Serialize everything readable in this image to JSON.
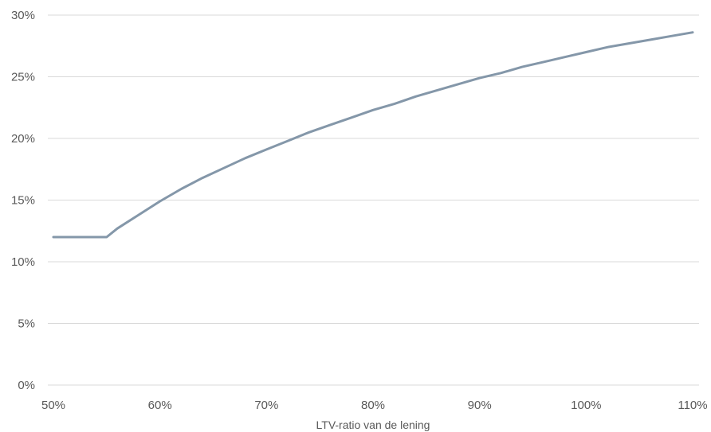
{
  "chart_data": {
    "type": "line",
    "title": "",
    "xlabel": "LTV-ratio van de lening",
    "ylabel": "",
    "xlim": [
      50,
      110
    ],
    "ylim": [
      0,
      30
    ],
    "x_ticks": [
      50,
      60,
      70,
      80,
      90,
      100,
      110
    ],
    "x_tick_labels": [
      "50%",
      "60%",
      "70%",
      "80%",
      "90%",
      "100%",
      "110%"
    ],
    "y_ticks": [
      0,
      5,
      10,
      15,
      20,
      25,
      30
    ],
    "y_tick_labels": [
      "0%",
      "5%",
      "10%",
      "15%",
      "20%",
      "25%",
      "30%"
    ],
    "grid": {
      "horizontal": true,
      "vertical": false
    },
    "legend": "none",
    "series": [
      {
        "color": "#8497a9",
        "x": [
          50,
          55,
          56,
          58,
          60,
          62,
          64,
          66,
          68,
          70,
          72,
          74,
          76,
          78,
          80,
          82,
          84,
          86,
          88,
          90,
          92,
          94,
          96,
          98,
          100,
          102,
          104,
          106,
          108,
          110
        ],
        "y": [
          12.0,
          12.0,
          12.7,
          13.8,
          14.9,
          15.9,
          16.8,
          17.6,
          18.4,
          19.1,
          19.8,
          20.5,
          21.1,
          21.7,
          22.3,
          22.8,
          23.4,
          23.9,
          24.4,
          24.9,
          25.3,
          25.8,
          26.2,
          26.6,
          27.0,
          27.4,
          27.7,
          28.0,
          28.3,
          28.6
        ]
      }
    ]
  }
}
